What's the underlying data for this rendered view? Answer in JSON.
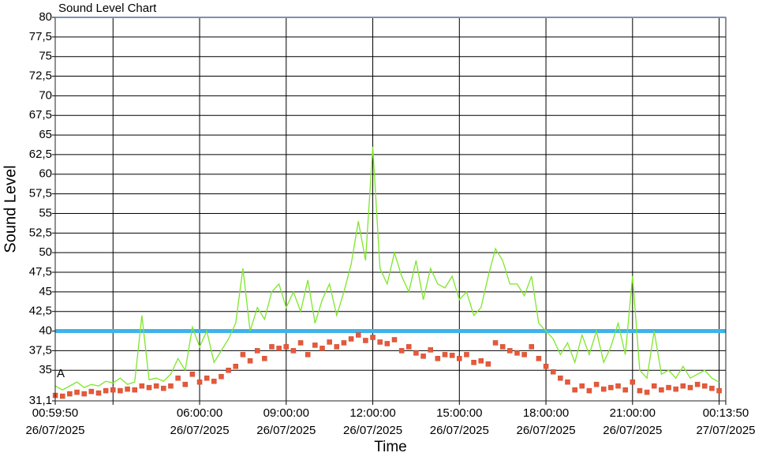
{
  "chart_data": {
    "type": "line",
    "title": "Sound Level Chart",
    "x_label": "Time",
    "y_label": "Sound Level",
    "annotation": "A",
    "x": [
      "2025-07-26 01:00",
      "2025-07-26 01:15",
      "2025-07-26 01:30",
      "2025-07-26 01:45",
      "2025-07-26 02:00",
      "2025-07-26 02:15",
      "2025-07-26 02:30",
      "2025-07-26 02:45",
      "2025-07-26 03:00",
      "2025-07-26 03:15",
      "2025-07-26 03:30",
      "2025-07-26 03:45",
      "2025-07-26 04:00",
      "2025-07-26 04:15",
      "2025-07-26 04:30",
      "2025-07-26 04:45",
      "2025-07-26 05:00",
      "2025-07-26 05:15",
      "2025-07-26 05:30",
      "2025-07-26 05:45",
      "2025-07-26 06:00",
      "2025-07-26 06:15",
      "2025-07-26 06:30",
      "2025-07-26 06:45",
      "2025-07-26 07:00",
      "2025-07-26 07:15",
      "2025-07-26 07:30",
      "2025-07-26 07:45",
      "2025-07-26 08:00",
      "2025-07-26 08:15",
      "2025-07-26 08:30",
      "2025-07-26 08:45",
      "2025-07-26 09:00",
      "2025-07-26 09:15",
      "2025-07-26 09:30",
      "2025-07-26 09:45",
      "2025-07-26 10:00",
      "2025-07-26 10:15",
      "2025-07-26 10:30",
      "2025-07-26 10:45",
      "2025-07-26 11:00",
      "2025-07-26 11:15",
      "2025-07-26 11:30",
      "2025-07-26 11:45",
      "2025-07-26 12:00",
      "2025-07-26 12:15",
      "2025-07-26 12:30",
      "2025-07-26 12:45",
      "2025-07-26 13:00",
      "2025-07-26 13:15",
      "2025-07-26 13:30",
      "2025-07-26 13:45",
      "2025-07-26 14:00",
      "2025-07-26 14:15",
      "2025-07-26 14:30",
      "2025-07-26 14:45",
      "2025-07-26 15:00",
      "2025-07-26 15:15",
      "2025-07-26 15:30",
      "2025-07-26 15:45",
      "2025-07-26 16:00",
      "2025-07-26 16:15",
      "2025-07-26 16:30",
      "2025-07-26 16:45",
      "2025-07-26 17:00",
      "2025-07-26 17:15",
      "2025-07-26 17:30",
      "2025-07-26 17:45",
      "2025-07-26 18:00",
      "2025-07-26 18:15",
      "2025-07-26 18:30",
      "2025-07-26 18:45",
      "2025-07-26 19:00",
      "2025-07-26 19:15",
      "2025-07-26 19:30",
      "2025-07-26 19:45",
      "2025-07-26 20:00",
      "2025-07-26 20:15",
      "2025-07-26 20:30",
      "2025-07-26 20:45",
      "2025-07-26 21:00",
      "2025-07-26 21:15",
      "2025-07-26 21:30",
      "2025-07-26 21:45",
      "2025-07-26 22:00",
      "2025-07-26 22:15",
      "2025-07-26 22:30",
      "2025-07-26 22:45",
      "2025-07-26 23:00",
      "2025-07-26 23:15",
      "2025-07-26 23:30",
      "2025-07-26 23:45",
      "2025-07-27 00:00"
    ],
    "series": [
      {
        "color": "#7ee62a",
        "style": "line",
        "values": [
          33,
          32.5,
          33,
          33.5,
          32.8,
          33.2,
          33,
          33.6,
          33.4,
          34,
          33.2,
          33.5,
          42,
          33.8,
          34,
          33.6,
          34.5,
          36.5,
          35,
          40.5,
          38,
          40,
          36,
          37.5,
          39,
          41,
          48,
          40,
          43,
          41.5,
          45,
          46,
          43,
          45,
          42.5,
          46.5,
          41,
          44,
          46,
          42,
          45,
          48.5,
          54,
          49,
          63.5,
          48,
          46,
          50,
          47,
          45,
          49,
          44,
          48,
          46,
          45.5,
          47,
          44,
          45,
          42,
          43,
          47,
          50.5,
          49,
          46,
          46,
          44.5,
          47,
          41,
          40,
          39,
          37,
          38.5,
          36,
          39.5,
          37,
          40,
          36,
          38,
          41,
          37,
          47,
          35,
          34,
          40,
          34.5,
          35,
          34,
          35.5,
          34,
          34.5,
          35,
          34,
          33.5
        ]
      },
      {
        "color": "#e8583a",
        "style": "markers",
        "values": [
          31.8,
          31.7,
          32,
          32.2,
          32,
          32.3,
          32.1,
          32.4,
          32.5,
          32.4,
          32.6,
          32.5,
          33,
          32.8,
          33,
          32.7,
          33,
          34,
          33.2,
          34.5,
          33.5,
          34,
          33.6,
          34.2,
          35,
          35.5,
          37,
          36.2,
          37.5,
          36.5,
          38,
          37.8,
          38,
          37.5,
          38.5,
          37,
          38.2,
          37.8,
          38.6,
          38,
          38.5,
          39,
          39.5,
          38.8,
          39.2,
          38.6,
          38.4,
          38.9,
          37.5,
          38,
          37.2,
          36.8,
          37.6,
          36.5,
          37,
          36.9,
          36.5,
          37,
          36,
          36.2,
          35.8,
          38.5,
          38,
          37.5,
          37.2,
          37,
          38,
          36.5,
          35.5,
          34.8,
          34,
          33.5,
          32.5,
          33,
          32.4,
          33.2,
          32.6,
          32.8,
          33,
          32.5,
          33.5,
          32.4,
          32.2,
          33,
          32.5,
          32.8,
          32.6,
          33,
          32.8,
          33.2,
          33,
          32.7,
          32.4
        ]
      }
    ],
    "threshold": 40,
    "threshold_color": "#3db3ea",
    "xlim": [
      "2025-07-26 00:59:50",
      "2025-07-27 00:13:50"
    ],
    "xticks": [
      {
        "value": "2025-07-26 00:59:50",
        "label": [
          "00:59:50",
          "26/07/2025"
        ]
      },
      {
        "value": "2025-07-26 03:00:00",
        "label": null
      },
      {
        "value": "2025-07-26 06:00:00",
        "label": [
          "06:00:00",
          "26/07/2025"
        ]
      },
      {
        "value": "2025-07-26 09:00:00",
        "label": [
          "09:00:00",
          "26/07/2025"
        ]
      },
      {
        "value": "2025-07-26 12:00:00",
        "label": [
          "12:00:00",
          "26/07/2025"
        ]
      },
      {
        "value": "2025-07-26 15:00:00",
        "label": [
          "15:00:00",
          "26/07/2025"
        ]
      },
      {
        "value": "2025-07-26 18:00:00",
        "label": [
          "18:00:00",
          "26/07/2025"
        ]
      },
      {
        "value": "2025-07-26 21:00:00",
        "label": [
          "21:00:00",
          "26/07/2025"
        ]
      },
      {
        "value": "2025-07-27 00:00:00",
        "label": null
      },
      {
        "value": "2025-07-27 00:13:50",
        "label": [
          "00:13:50",
          "27/07/2025"
        ]
      }
    ],
    "ylim": [
      31.1,
      80
    ],
    "yticks": [
      {
        "value": 31.1,
        "label": "31,1"
      },
      35,
      {
        "value": 37.5,
        "label": "37,5"
      },
      40,
      {
        "value": 42.5,
        "label": "42,5"
      },
      45,
      {
        "value": 47.5,
        "label": "47,5"
      },
      50,
      {
        "value": 52.5,
        "label": "52,5"
      },
      55,
      {
        "value": 57.5,
        "label": "57,5"
      },
      60,
      {
        "value": 62.5,
        "label": "62,5"
      },
      65,
      {
        "value": 67.5,
        "label": "67,5"
      },
      70,
      {
        "value": 72.5,
        "label": "72,5"
      },
      75,
      {
        "value": 77.5,
        "label": "77,5"
      },
      80
    ],
    "grid": true
  }
}
